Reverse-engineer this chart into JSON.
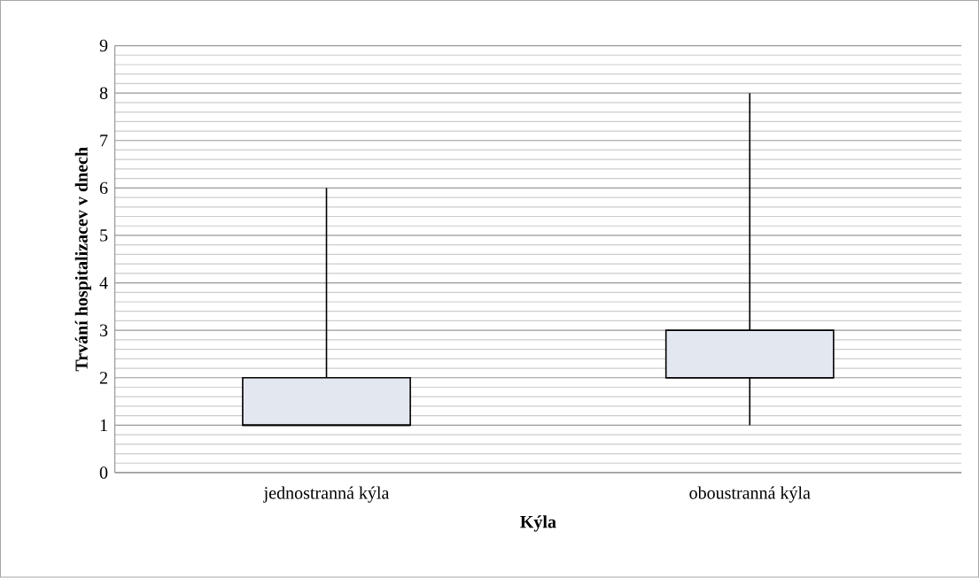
{
  "chart_data": {
    "type": "box",
    "xlabel": "Kýla",
    "ylabel": "Trvání hospitalizacev v dnech",
    "categories": [
      "jednostranná kýla",
      "oboustranná kýla"
    ],
    "boxes": [
      {
        "low": 1,
        "q1": 1,
        "median": 1,
        "q3": 2,
        "high": 6
      },
      {
        "low": 1,
        "q1": 2,
        "median": 2,
        "q3": 3,
        "high": 8
      }
    ],
    "color": "#e3e7f0",
    "ylim": [
      0,
      9
    ],
    "yticks": [
      0,
      1,
      2,
      3,
      4,
      5,
      6,
      7,
      8,
      9
    ],
    "grid": "y"
  }
}
